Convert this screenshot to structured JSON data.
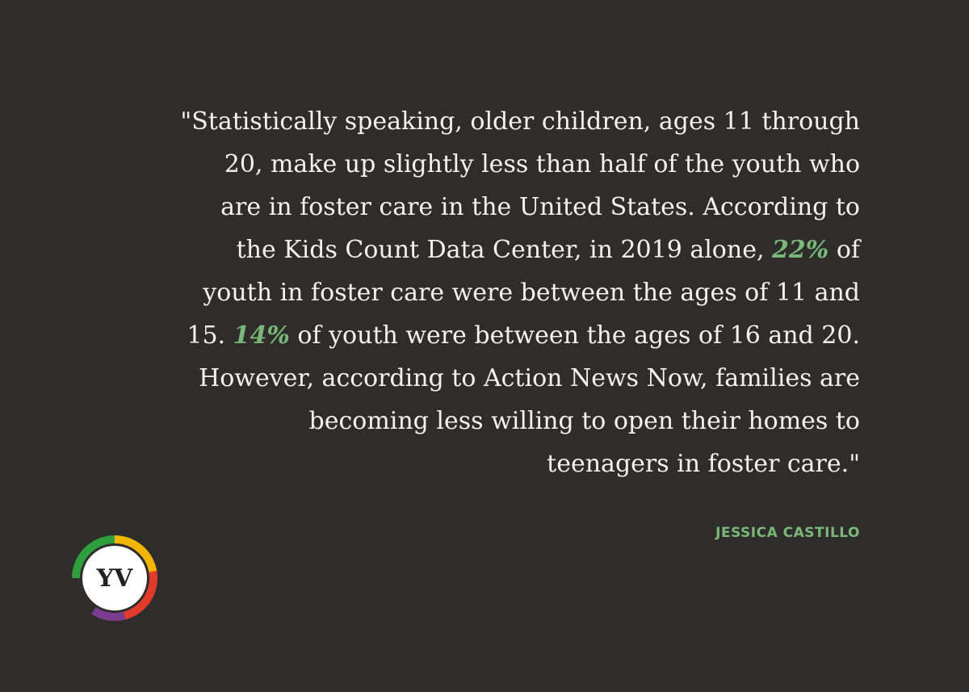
{
  "quote": {
    "lines": [
      [
        {
          "text": "\"Statistically speaking, older children, ages 11 through"
        }
      ],
      [
        {
          "text": "20, make up slightly less than half of the youth who"
        }
      ],
      [
        {
          "text": "are in foster care in the United States. According to"
        }
      ],
      [
        {
          "text": "the Kids Count Data Center, in 2019 alone, "
        },
        {
          "text": "22%",
          "highlight": true
        },
        {
          "text": " of"
        }
      ],
      [
        {
          "text": "youth in foster care were between the ages of 11 and"
        }
      ],
      [
        {
          "text": "15. "
        },
        {
          "text": "14%",
          "highlight": true
        },
        {
          "text": " of youth were between the ages of 16 and 20."
        }
      ],
      [
        {
          "text": "However, according to Action News Now, families are"
        }
      ],
      [
        {
          "text": "becoming less willing to open their homes to"
        }
      ],
      [
        {
          "text": "teenagers in foster care.\""
        }
      ]
    ]
  },
  "author": "JESSICA CASTILLO",
  "logo": "YV"
}
